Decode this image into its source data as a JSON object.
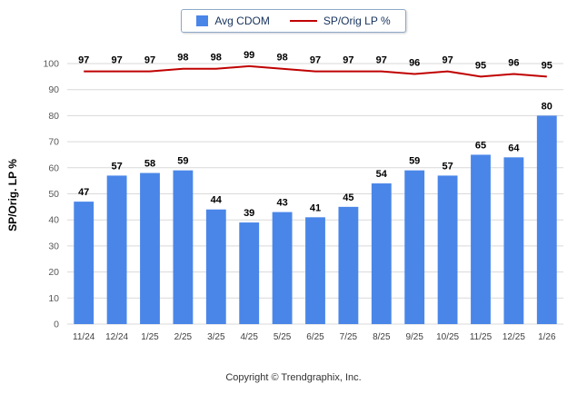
{
  "chart_data": {
    "type": "bar",
    "categories": [
      "11/24",
      "12/24",
      "1/25",
      "2/25",
      "3/25",
      "4/25",
      "5/25",
      "6/25",
      "7/25",
      "8/25",
      "9/25",
      "10/25",
      "11/25",
      "12/25",
      "1/26"
    ],
    "series": [
      {
        "name": "Avg CDOM",
        "type": "bar",
        "color": "#4a86e8",
        "values": [
          47,
          57,
          58,
          59,
          44,
          39,
          43,
          41,
          45,
          54,
          59,
          57,
          65,
          64,
          80
        ]
      },
      {
        "name": "SP/Orig LP %",
        "type": "line",
        "color": "#c00000",
        "values": [
          97,
          97,
          97,
          98,
          98,
          99,
          98,
          97,
          97,
          97,
          96,
          97,
          95,
          96,
          95
        ]
      }
    ],
    "title": "",
    "xlabel": "",
    "ylabel": "SP/Orig. LP %",
    "ylim": [
      0,
      100
    ],
    "ytick_step": 10,
    "grid": true,
    "legend_position": "top-center"
  },
  "footer": {
    "text": "Copyright © Trendgraphix, Inc."
  }
}
